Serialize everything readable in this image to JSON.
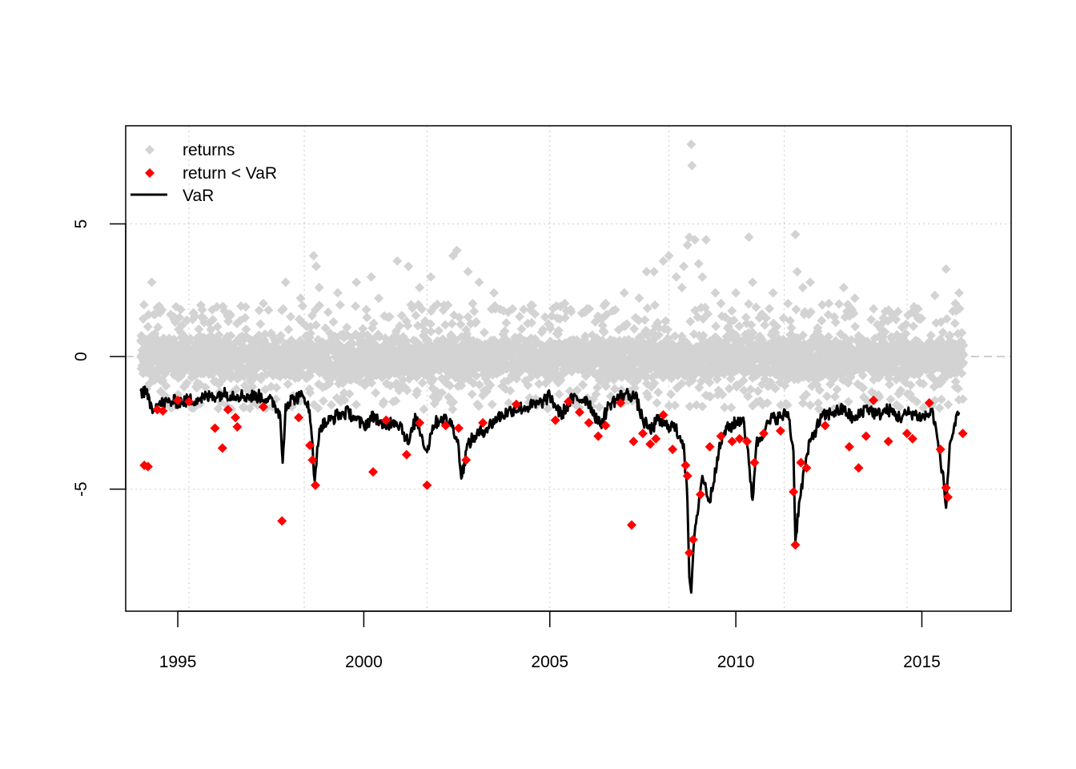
{
  "colors": {
    "returns": "#d3d3d3",
    "breach": "#ff0000",
    "var_line": "#000000",
    "grid": "#d3d3d3",
    "zero_line": "#bebebe"
  },
  "legend": {
    "items": [
      {
        "label": "returns",
        "marker": "diamond",
        "color": "#d3d3d3"
      },
      {
        "label": "return < VaR",
        "marker": "diamond",
        "color": "#ff0000"
      },
      {
        "label": "VaR",
        "marker": "line",
        "color": "#000000"
      }
    ]
  },
  "chart_data": {
    "type": "scatter",
    "title": "",
    "xlabel": "",
    "ylabel": "",
    "xlim": [
      1993.6,
      2017.4
    ],
    "ylim": [
      -9.6,
      8.7
    ],
    "x_ticks": [
      1995,
      2000,
      2005,
      2010,
      2015
    ],
    "y_ticks": [
      -5,
      0,
      5
    ],
    "x_gridlines": [
      1995.3,
      1998.4,
      2001.7,
      2005,
      2008.2,
      2011.3,
      2014.6
    ],
    "grid": true,
    "zero_reference_line": true,
    "legend_position": "top-left",
    "var_line": [
      [
        1994.0,
        -1.3
      ],
      [
        1994.15,
        -1.4
      ],
      [
        1994.3,
        -1.9
      ],
      [
        1994.5,
        -1.8
      ],
      [
        1994.8,
        -1.7
      ],
      [
        1995.1,
        -1.7
      ],
      [
        1995.5,
        -1.6
      ],
      [
        1995.9,
        -1.5
      ],
      [
        1996.2,
        -1.4
      ],
      [
        1996.6,
        -1.45
      ],
      [
        1996.9,
        -1.5
      ],
      [
        1997.2,
        -1.5
      ],
      [
        1997.4,
        -1.6
      ],
      [
        1997.6,
        -1.8
      ],
      [
        1997.75,
        -2.2
      ],
      [
        1997.82,
        -4.0
      ],
      [
        1997.9,
        -1.8
      ],
      [
        1998.1,
        -1.6
      ],
      [
        1998.3,
        -1.5
      ],
      [
        1998.5,
        -1.7
      ],
      [
        1998.6,
        -3.0
      ],
      [
        1998.68,
        -4.7
      ],
      [
        1998.75,
        -3.4
      ],
      [
        1998.85,
        -2.6
      ],
      [
        1999.0,
        -2.5
      ],
      [
        1999.3,
        -2.2
      ],
      [
        1999.6,
        -2.1
      ],
      [
        1999.8,
        -2.4
      ],
      [
        2000.0,
        -2.6
      ],
      [
        2000.3,
        -2.2
      ],
      [
        2000.5,
        -2.7
      ],
      [
        2000.8,
        -2.4
      ],
      [
        2001.0,
        -2.6
      ],
      [
        2001.2,
        -3.3
      ],
      [
        2001.4,
        -2.3
      ],
      [
        2001.7,
        -3.6
      ],
      [
        2001.85,
        -2.6
      ],
      [
        2002.1,
        -2.3
      ],
      [
        2002.4,
        -2.6
      ],
      [
        2002.55,
        -3.4
      ],
      [
        2002.62,
        -4.6
      ],
      [
        2002.7,
        -4.0
      ],
      [
        2002.8,
        -3.3
      ],
      [
        2003.0,
        -3.0
      ],
      [
        2003.3,
        -2.7
      ],
      [
        2003.6,
        -2.3
      ],
      [
        2004.0,
        -2.0
      ],
      [
        2004.4,
        -1.9
      ],
      [
        2004.7,
        -1.8
      ],
      [
        2005.0,
        -1.5
      ],
      [
        2005.3,
        -2.2
      ],
      [
        2005.6,
        -1.6
      ],
      [
        2006.0,
        -1.6
      ],
      [
        2006.35,
        -2.6
      ],
      [
        2006.6,
        -1.8
      ],
      [
        2007.0,
        -1.4
      ],
      [
        2007.3,
        -1.5
      ],
      [
        2007.5,
        -2.4
      ],
      [
        2007.7,
        -2.8
      ],
      [
        2007.9,
        -2.4
      ],
      [
        2008.1,
        -2.6
      ],
      [
        2008.3,
        -2.6
      ],
      [
        2008.5,
        -3.0
      ],
      [
        2008.6,
        -3.3
      ],
      [
        2008.7,
        -5.5
      ],
      [
        2008.75,
        -8.3
      ],
      [
        2008.8,
        -8.9
      ],
      [
        2008.85,
        -7.5
      ],
      [
        2008.95,
        -6.0
      ],
      [
        2009.1,
        -4.5
      ],
      [
        2009.3,
        -5.5
      ],
      [
        2009.5,
        -3.8
      ],
      [
        2009.7,
        -2.8
      ],
      [
        2010.0,
        -2.5
      ],
      [
        2010.2,
        -2.3
      ],
      [
        2010.35,
        -4.0
      ],
      [
        2010.45,
        -5.4
      ],
      [
        2010.55,
        -3.3
      ],
      [
        2010.8,
        -2.7
      ],
      [
        2011.0,
        -2.3
      ],
      [
        2011.2,
        -2.3
      ],
      [
        2011.4,
        -2.1
      ],
      [
        2011.55,
        -3.6
      ],
      [
        2011.6,
        -7.0
      ],
      [
        2011.7,
        -5.5
      ],
      [
        2011.85,
        -4.2
      ],
      [
        2012.0,
        -3.2
      ],
      [
        2012.3,
        -2.3
      ],
      [
        2012.6,
        -2.1
      ],
      [
        2012.9,
        -2.0
      ],
      [
        2013.2,
        -2.4
      ],
      [
        2013.5,
        -1.9
      ],
      [
        2013.8,
        -2.2
      ],
      [
        2014.1,
        -2.0
      ],
      [
        2014.4,
        -2.3
      ],
      [
        2014.7,
        -2.1
      ],
      [
        2015.0,
        -2.3
      ],
      [
        2015.3,
        -2.1
      ],
      [
        2015.55,
        -4.3
      ],
      [
        2015.65,
        -5.7
      ],
      [
        2015.75,
        -3.3
      ],
      [
        2015.9,
        -2.6
      ],
      [
        2016.0,
        -2.1
      ]
    ],
    "breaches": [
      [
        1994.1,
        -4.1
      ],
      [
        1994.2,
        -4.15
      ],
      [
        1994.45,
        -2.0
      ],
      [
        1994.6,
        -2.05
      ],
      [
        1995.0,
        -1.65
      ],
      [
        1995.3,
        -1.7
      ],
      [
        1996.0,
        -2.7
      ],
      [
        1996.2,
        -3.45
      ],
      [
        1996.35,
        -2.0
      ],
      [
        1996.55,
        -2.3
      ],
      [
        1996.6,
        -2.65
      ],
      [
        1997.3,
        -1.9
      ],
      [
        1997.8,
        -6.2
      ],
      [
        1998.25,
        -2.3
      ],
      [
        1998.55,
        -3.35
      ],
      [
        1998.62,
        -3.9
      ],
      [
        1998.7,
        -4.85
      ],
      [
        2000.25,
        -4.35
      ],
      [
        2000.6,
        -2.4
      ],
      [
        2001.15,
        -3.7
      ],
      [
        2001.5,
        -2.5
      ],
      [
        2001.7,
        -4.85
      ],
      [
        2002.2,
        -2.6
      ],
      [
        2002.55,
        -2.7
      ],
      [
        2002.75,
        -3.9
      ],
      [
        2003.2,
        -2.5
      ],
      [
        2004.1,
        -1.8
      ],
      [
        2005.15,
        -2.4
      ],
      [
        2005.5,
        -1.7
      ],
      [
        2005.8,
        -2.1
      ],
      [
        2006.05,
        -2.5
      ],
      [
        2006.3,
        -3.0
      ],
      [
        2006.5,
        -2.6
      ],
      [
        2006.9,
        -1.75
      ],
      [
        2007.2,
        -6.35
      ],
      [
        2007.25,
        -3.2
      ],
      [
        2007.5,
        -2.9
      ],
      [
        2007.7,
        -3.3
      ],
      [
        2007.85,
        -3.1
      ],
      [
        2008.05,
        -2.2
      ],
      [
        2008.3,
        -3.5
      ],
      [
        2008.65,
        -4.1
      ],
      [
        2008.7,
        -4.5
      ],
      [
        2008.75,
        -7.4
      ],
      [
        2008.85,
        -6.9
      ],
      [
        2009.05,
        -5.2
      ],
      [
        2009.3,
        -3.4
      ],
      [
        2009.6,
        -3.0
      ],
      [
        2009.9,
        -3.2
      ],
      [
        2010.1,
        -3.1
      ],
      [
        2010.3,
        -3.2
      ],
      [
        2010.5,
        -4.0
      ],
      [
        2010.75,
        -2.9
      ],
      [
        2011.2,
        -2.8
      ],
      [
        2011.55,
        -5.1
      ],
      [
        2011.6,
        -7.1
      ],
      [
        2011.75,
        -4.0
      ],
      [
        2011.9,
        -4.2
      ],
      [
        2012.4,
        -2.6
      ],
      [
        2013.05,
        -3.4
      ],
      [
        2013.3,
        -4.2
      ],
      [
        2013.5,
        -3.0
      ],
      [
        2013.7,
        -1.65
      ],
      [
        2014.1,
        -3.2
      ],
      [
        2014.6,
        -2.9
      ],
      [
        2014.75,
        -3.1
      ],
      [
        2015.2,
        -1.75
      ],
      [
        2015.5,
        -3.5
      ],
      [
        2015.65,
        -4.95
      ],
      [
        2015.7,
        -5.3
      ],
      [
        2016.1,
        -2.9
      ]
    ],
    "returns_band": {
      "upper": 1.2,
      "lower": -1.3
    },
    "returns_outliers": [
      [
        1994.3,
        2.8
      ],
      [
        1994.4,
        1.6
      ],
      [
        1994.9,
        1.4
      ],
      [
        1995.4,
        1.4
      ],
      [
        1996.4,
        1.6
      ],
      [
        1996.7,
        1.9
      ],
      [
        1997.3,
        2.0
      ],
      [
        1997.9,
        2.8
      ],
      [
        1998.3,
        2.2
      ],
      [
        1998.65,
        3.8
      ],
      [
        1998.72,
        3.4
      ],
      [
        1998.8,
        2.6
      ],
      [
        1999.3,
        2.4
      ],
      [
        1999.8,
        2.8
      ],
      [
        2000.2,
        3.0
      ],
      [
        2000.4,
        2.2
      ],
      [
        2000.9,
        3.6
      ],
      [
        2001.2,
        3.4
      ],
      [
        2001.5,
        2.6
      ],
      [
        2001.8,
        3.0
      ],
      [
        2002.4,
        3.8
      ],
      [
        2002.5,
        4.0
      ],
      [
        2002.8,
        3.2
      ],
      [
        2003.1,
        2.8
      ],
      [
        2003.5,
        2.4
      ],
      [
        2004.0,
        1.8
      ],
      [
        2004.6,
        1.6
      ],
      [
        2005.4,
        2.0
      ],
      [
        2006.0,
        1.8
      ],
      [
        2006.5,
        2.0
      ],
      [
        2007.0,
        2.4
      ],
      [
        2007.4,
        2.2
      ],
      [
        2007.6,
        3.2
      ],
      [
        2007.8,
        3.2
      ],
      [
        2008.05,
        3.6
      ],
      [
        2008.2,
        3.8
      ],
      [
        2008.4,
        3.0
      ],
      [
        2008.55,
        2.6
      ],
      [
        2008.6,
        3.4
      ],
      [
        2008.7,
        4.2
      ],
      [
        2008.75,
        4.5
      ],
      [
        2008.8,
        8.0
      ],
      [
        2008.82,
        7.2
      ],
      [
        2008.9,
        4.4
      ],
      [
        2009.0,
        3.5
      ],
      [
        2009.1,
        3.0
      ],
      [
        2009.2,
        4.4
      ],
      [
        2009.45,
        2.4
      ],
      [
        2009.6,
        2.0
      ],
      [
        2010.0,
        2.4
      ],
      [
        2010.35,
        4.5
      ],
      [
        2010.45,
        2.8
      ],
      [
        2010.7,
        1.6
      ],
      [
        2011.0,
        2.4
      ],
      [
        2011.4,
        2.0
      ],
      [
        2011.6,
        4.6
      ],
      [
        2011.65,
        3.2
      ],
      [
        2011.8,
        2.6
      ],
      [
        2012.0,
        2.8
      ],
      [
        2012.5,
        2.0
      ],
      [
        2012.9,
        2.6
      ],
      [
        2013.2,
        2.2
      ],
      [
        2013.7,
        1.8
      ],
      [
        2014.2,
        1.6
      ],
      [
        2014.9,
        1.8
      ],
      [
        2015.35,
        2.3
      ],
      [
        2015.65,
        3.3
      ],
      [
        2015.9,
        2.0
      ],
      [
        2016.0,
        2.4
      ]
    ]
  }
}
